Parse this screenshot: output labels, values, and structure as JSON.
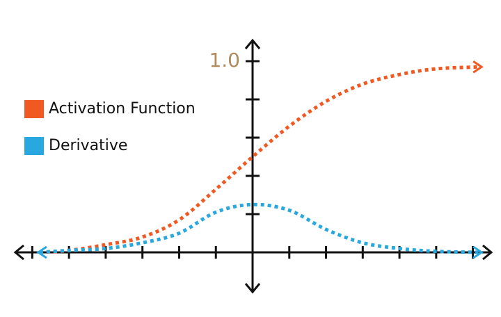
{
  "chart_data": {
    "type": "line",
    "x": [
      -5.8,
      -5,
      -4,
      -3,
      -2,
      -1,
      0,
      1,
      2,
      3,
      4,
      5,
      6.2
    ],
    "series": [
      {
        "name": "Activation Function",
        "color": "#f05a22",
        "values": [
          0.0,
          0.01,
          0.04,
          0.08,
          0.17,
          0.33,
          0.5,
          0.66,
          0.79,
          0.88,
          0.93,
          0.96,
          0.97
        ]
      },
      {
        "name": "Derivative",
        "color": "#29a8e0",
        "values": [
          0.0,
          0.01,
          0.02,
          0.05,
          0.1,
          0.21,
          0.25,
          0.22,
          0.12,
          0.05,
          0.02,
          0.005,
          0.0
        ]
      }
    ],
    "xlim": [
      -6.5,
      6.5
    ],
    "ylim": [
      -0.2,
      1.1
    ],
    "xticks": [
      {
        "value": -6,
        "label": null
      },
      {
        "value": -5,
        "label": null
      },
      {
        "value": -4,
        "label": null
      },
      {
        "value": -3,
        "label": null
      },
      {
        "value": -2,
        "label": null
      },
      {
        "value": -1,
        "label": null
      },
      {
        "value": 1,
        "label": null
      },
      {
        "value": 2,
        "label": null
      },
      {
        "value": 3,
        "label": null
      },
      {
        "value": 4,
        "label": null
      },
      {
        "value": 5,
        "label": null
      },
      {
        "value": 6,
        "label": null
      }
    ],
    "yticks": [
      {
        "value": 0.2,
        "label": null
      },
      {
        "value": 0.4,
        "label": null
      },
      {
        "value": 0.6,
        "label": null
      },
      {
        "value": 0.8,
        "label": null
      },
      {
        "value": 1.0,
        "label": "1.0"
      }
    ],
    "tick_label_color": "#b08a5a",
    "legend": "left",
    "grid": false
  }
}
